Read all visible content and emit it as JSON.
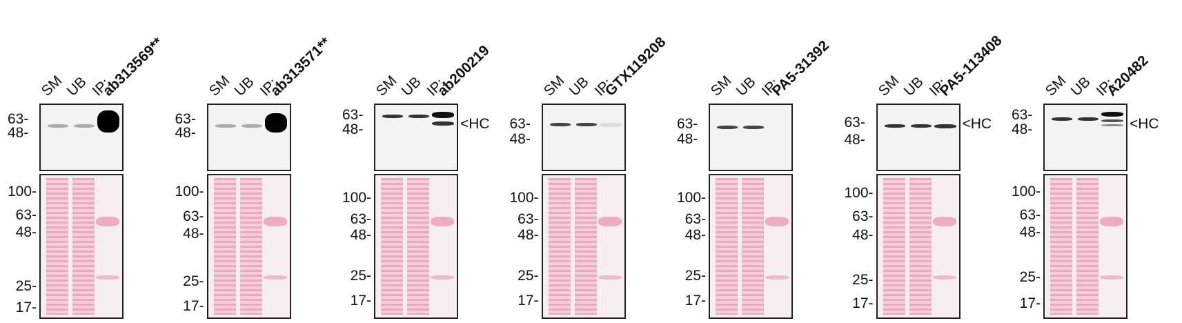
{
  "panels": [
    {
      "lanes": [
        "SM",
        "UB",
        "IP:"
      ],
      "antibody": "ab313569**",
      "top_markers": [
        "63-",
        "48-"
      ],
      "bottom_markers": [
        "100-",
        "63-",
        "48-",
        "25-",
        "17-"
      ]
    },
    {
      "lanes": [
        "SM",
        "UB",
        "IP:"
      ],
      "antibody": "ab313571**",
      "top_markers": [
        "63-",
        "48-"
      ],
      "bottom_markers": [
        "100-",
        "63-",
        "48-",
        "25-",
        "17-"
      ]
    },
    {
      "lanes": [
        "SM",
        "UB",
        "IP:"
      ],
      "antibody": "ab200219",
      "top_markers": [
        "63-",
        "48-"
      ],
      "hc": "<HC",
      "bottom_markers": [
        "100-",
        "63-",
        "48-",
        "25-",
        "17-"
      ]
    },
    {
      "lanes": [
        "SM",
        "UB",
        "IP:"
      ],
      "antibody": "GTX119208",
      "top_markers": [
        "63-",
        "48-"
      ],
      "bottom_markers": [
        "100-",
        "63-",
        "48-",
        "25-",
        "17-"
      ]
    },
    {
      "lanes": [
        "SM",
        "UB",
        "IP:"
      ],
      "antibody": "PA5-31392",
      "top_markers": [
        "63-",
        "48-"
      ],
      "bottom_markers": [
        "100-",
        "63-",
        "48-",
        "25-",
        "17-"
      ]
    },
    {
      "lanes": [
        "SM",
        "UB",
        "IP:"
      ],
      "antibody": "PA5-113408",
      "top_markers": [
        "63-",
        "48-"
      ],
      "hc": "<HC",
      "bottom_markers": [
        "100-",
        "63-",
        "48-",
        "25-",
        "17-"
      ]
    },
    {
      "lanes": [
        "SM",
        "UB",
        "IP:"
      ],
      "antibody": "A20482",
      "top_markers": [
        "63-",
        "48-"
      ],
      "hc": "<HC",
      "bottom_markers": [
        "100-",
        "63-",
        "48-",
        "25-",
        "17-"
      ]
    }
  ]
}
